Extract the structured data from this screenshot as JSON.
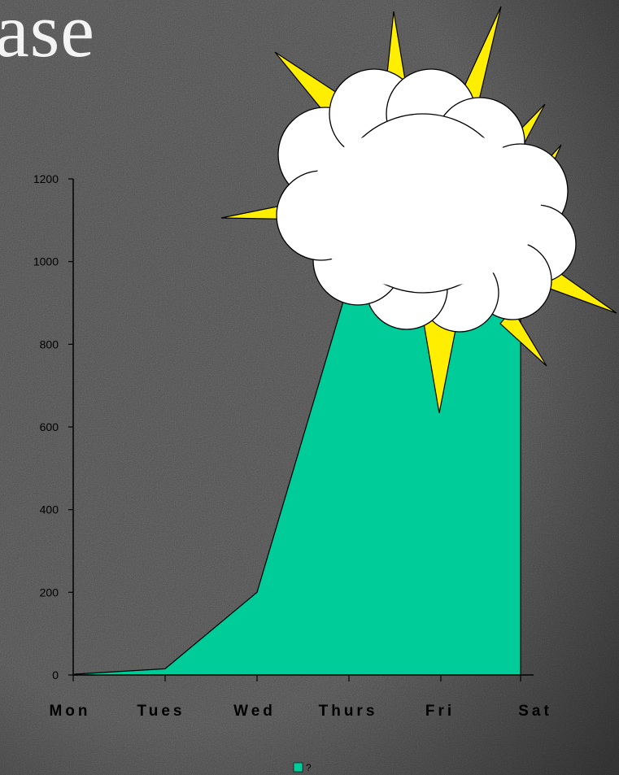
{
  "title_fragment": "ase",
  "colors": {
    "background": "#4a4a4a",
    "area_fill": "#00cc99",
    "axis": "#000000",
    "sun_ray": "#ffee00",
    "cloud": "#ffffff"
  },
  "decoration": {
    "icon": "sun-behind-cloud-icon"
  },
  "chart_data": {
    "type": "area",
    "categories": [
      "Mon",
      "Tues",
      "Wed",
      "Thurs",
      "Fri",
      "Sat"
    ],
    "series": [
      {
        "name": "?",
        "values": [
          2,
          15,
          200,
          950,
          980,
          1000
        ]
      }
    ],
    "ylim": [
      0,
      1200
    ],
    "yticks": [
      "0",
      "200",
      "400",
      "600",
      "800",
      "1000",
      "1200"
    ],
    "grid": false,
    "legend": "bottom-center"
  }
}
